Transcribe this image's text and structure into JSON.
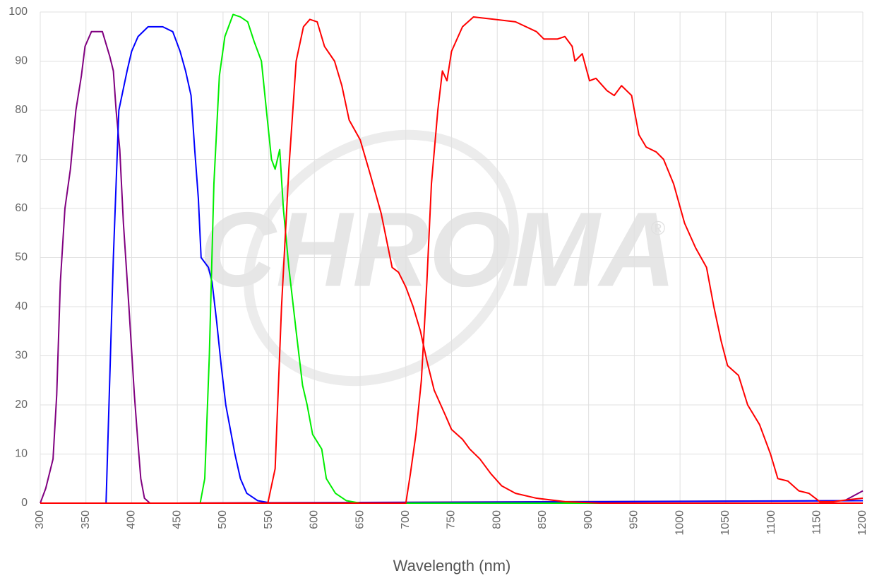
{
  "chart_data": {
    "type": "line",
    "xlabel": "Wavelength (nm)",
    "watermark": "CHROMA",
    "watermark_mark": "®",
    "xlim": [
      300,
      1200
    ],
    "ylim": [
      0,
      100
    ],
    "xticks": [
      300,
      350,
      400,
      450,
      500,
      550,
      600,
      650,
      700,
      750,
      800,
      850,
      900,
      950,
      1000,
      1050,
      1100,
      1150,
      1200
    ],
    "yticks": [
      0,
      10,
      20,
      30,
      40,
      50,
      60,
      70,
      80,
      90,
      100
    ],
    "grid": true,
    "series": [
      {
        "color": "#800080",
        "x": [
          300,
          306,
          314,
          318,
          322,
          327,
          333,
          339,
          345,
          349,
          356,
          368,
          376,
          380,
          383,
          387,
          391,
          397,
          403,
          407,
          410,
          414,
          420,
          1180,
          1200
        ],
        "values": [
          0,
          3,
          9,
          22,
          45,
          60,
          68,
          80,
          87,
          93,
          96,
          96,
          91,
          88,
          80,
          72,
          57,
          40,
          22,
          12,
          5,
          1,
          0,
          0.5,
          2.5
        ]
      },
      {
        "color": "#0000ff",
        "x": [
          300,
          372,
          380,
          386,
          395,
          400,
          407,
          418,
          434,
          445,
          453,
          459,
          465,
          469,
          473,
          476,
          484,
          488,
          493,
          498,
          503,
          507,
          513,
          519,
          526,
          538,
          553,
          1200
        ],
        "values": [
          0,
          0,
          50,
          80,
          88,
          92,
          95,
          97,
          97,
          96,
          92,
          88,
          83,
          72,
          62,
          50,
          48,
          45,
          37,
          28,
          20,
          16,
          10,
          5,
          2,
          0.5,
          0,
          0.5
        ]
      },
      {
        "color": "#00ee00",
        "x": [
          300,
          475,
          480,
          485,
          490,
          496,
          502,
          511,
          519,
          527,
          534,
          542,
          548,
          553,
          557,
          562,
          566,
          572,
          580,
          587,
          592,
          598,
          608,
          613,
          623,
          635,
          650,
          1200
        ],
        "values": [
          0,
          0,
          5,
          30,
          65,
          87,
          95,
          99.5,
          99,
          98,
          94,
          90,
          79,
          70,
          68,
          72,
          60,
          48,
          35,
          24,
          20,
          14,
          11,
          5,
          2,
          0.5,
          0,
          0
        ]
      },
      {
        "color": "#ff0000",
        "x": [
          300,
          549,
          557,
          564,
          572,
          580,
          588,
          595,
          603,
          611,
          622,
          630,
          638,
          650,
          661,
          673,
          685,
          692,
          700,
          708,
          716,
          723,
          731,
          743,
          750,
          762,
          770,
          781,
          793,
          805,
          820,
          843,
          874,
          913,
          1200
        ],
        "values": [
          0,
          0,
          7,
          40,
          68,
          90,
          97,
          98.5,
          98,
          93,
          90,
          85,
          78,
          74,
          67,
          59,
          48,
          47,
          44,
          40,
          35,
          29,
          23,
          18,
          15,
          13,
          11,
          9,
          6,
          3.5,
          2,
          1,
          0.3,
          0,
          0
        ]
      },
      {
        "color": "#ff0000",
        "x": [
          300,
          700,
          705,
          711,
          717,
          723,
          728,
          735,
          740,
          745,
          750,
          762,
          774,
          797,
          820,
          843,
          851,
          866,
          874,
          882,
          885,
          893,
          901,
          908,
          920,
          928,
          936,
          947,
          955,
          963,
          974,
          982,
          993,
          1005,
          1017,
          1029,
          1037,
          1045,
          1052,
          1064,
          1074,
          1087,
          1099,
          1107,
          1118,
          1130,
          1141,
          1153,
          1168,
          1184,
          1200
        ],
        "values": [
          0,
          0,
          6,
          14,
          25,
          45,
          65,
          80,
          88,
          86,
          92,
          97,
          99,
          98.5,
          98,
          96,
          94.5,
          94.5,
          95,
          93,
          90,
          91.5,
          86,
          86.5,
          84,
          83,
          85,
          83,
          75,
          72.5,
          71.5,
          70,
          65,
          57,
          52,
          48,
          40,
          33,
          28,
          26,
          20,
          16,
          10,
          5,
          4.5,
          2.5,
          2,
          0.3,
          0.3,
          0.7,
          1
        ]
      }
    ]
  }
}
